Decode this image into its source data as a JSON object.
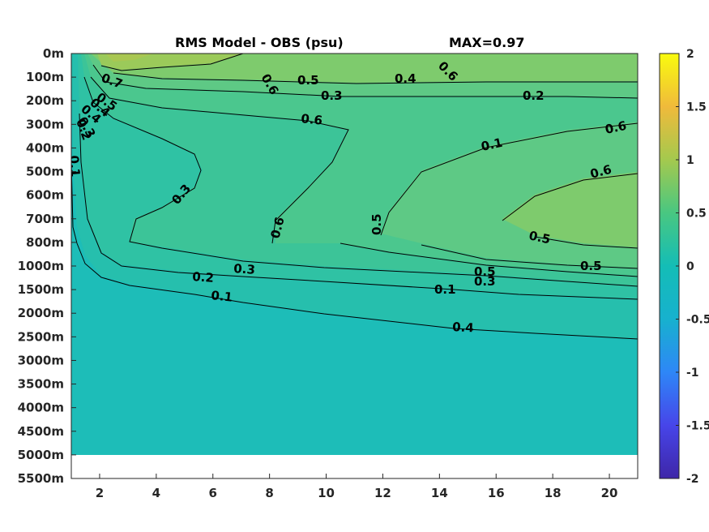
{
  "chart_data": {
    "type": "heatmap",
    "subtype": "filled contour",
    "title": "RMS Model - OBS (psu)",
    "annotation": "MAX=0.97",
    "xlabel": "",
    "ylabel": "",
    "x_ticks": [
      "2",
      "4",
      "6",
      "8",
      "10",
      "12",
      "14",
      "16",
      "18",
      "20"
    ],
    "x_range": [
      1,
      21
    ],
    "y_ticks": [
      "0m",
      "100m",
      "200m",
      "300m",
      "400m",
      "500m",
      "600m",
      "700m",
      "800m",
      "1000m",
      "1500m",
      "2000m",
      "2500m",
      "3000m",
      "3500m",
      "4000m",
      "4500m",
      "5000m",
      "5500m"
    ],
    "y_data_extent": "0m-5000m",
    "colorbar": {
      "range": [
        -2,
        2
      ],
      "ticks": [
        "2",
        "1.5",
        "1",
        "0.5",
        "0",
        "-0.5",
        "-1",
        "-1.5",
        "-2"
      ],
      "colormap": "parula",
      "colors": [
        "#3e26a8",
        "#4745e9",
        "#2e87f7",
        "#17b1ce",
        "#2ec295",
        "#8dcb5f",
        "#d2bb41",
        "#fcc139",
        "#f9fb0e"
      ]
    },
    "contour_levels": [
      0.1,
      0.2,
      0.3,
      0.4,
      0.5,
      0.6,
      0.7
    ],
    "contour_labels": [
      "0.7",
      "0.6",
      "0.5",
      "0.4",
      "0.3",
      "0.2",
      "0.1",
      "0.6",
      "0.6",
      "0.6",
      "0.5",
      "0.5",
      "0.5",
      "0.5",
      "0.6",
      "0.6",
      "0.5",
      "0.4",
      "0.4",
      "0.3",
      "0.3",
      "0.2",
      "0.1",
      "0.1",
      "0.4",
      "0.3",
      "0.2",
      "0.1",
      "0.3"
    ],
    "max_value": 0.97
  }
}
